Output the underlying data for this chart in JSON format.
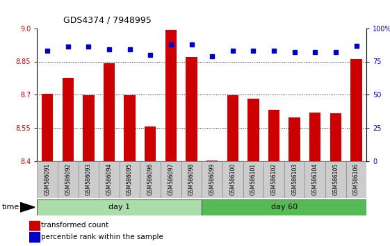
{
  "title": "GDS4374 / 7948995",
  "samples": [
    "GSM586091",
    "GSM586092",
    "GSM586093",
    "GSM586094",
    "GSM586095",
    "GSM586096",
    "GSM586097",
    "GSM586098",
    "GSM586099",
    "GSM586100",
    "GSM586101",
    "GSM586102",
    "GSM586103",
    "GSM586104",
    "GSM586105",
    "GSM586106"
  ],
  "red_vals": [
    8.705,
    8.775,
    8.697,
    8.843,
    8.698,
    8.558,
    8.993,
    8.87,
    8.403,
    8.699,
    8.682,
    8.631,
    8.598,
    8.618,
    8.617,
    8.86
  ],
  "blue_vals": [
    83,
    86,
    86,
    84,
    84,
    80,
    88,
    88,
    79,
    83,
    83,
    83,
    82,
    82,
    82,
    87
  ],
  "day1_count": 8,
  "day60_count": 8,
  "ylim_left": [
    8.4,
    9.0
  ],
  "ylim_right": [
    0,
    100
  ],
  "yticks_left": [
    8.4,
    8.55,
    8.7,
    8.85,
    9.0
  ],
  "yticks_right": [
    0,
    25,
    50,
    75,
    100
  ],
  "grid_lines": [
    8.55,
    8.7,
    8.85
  ],
  "bar_color": "#cc0000",
  "dot_color": "#0000cc",
  "day1_color": "#aaddaa",
  "day60_color": "#55bb55",
  "label_box_color": "#cccccc",
  "bar_width": 0.55,
  "dot_size": 4,
  "legend_red": "transformed count",
  "legend_blue": "percentile rank within the sample",
  "time_label": "time",
  "day1_label": "day 1",
  "day60_label": "day 60"
}
